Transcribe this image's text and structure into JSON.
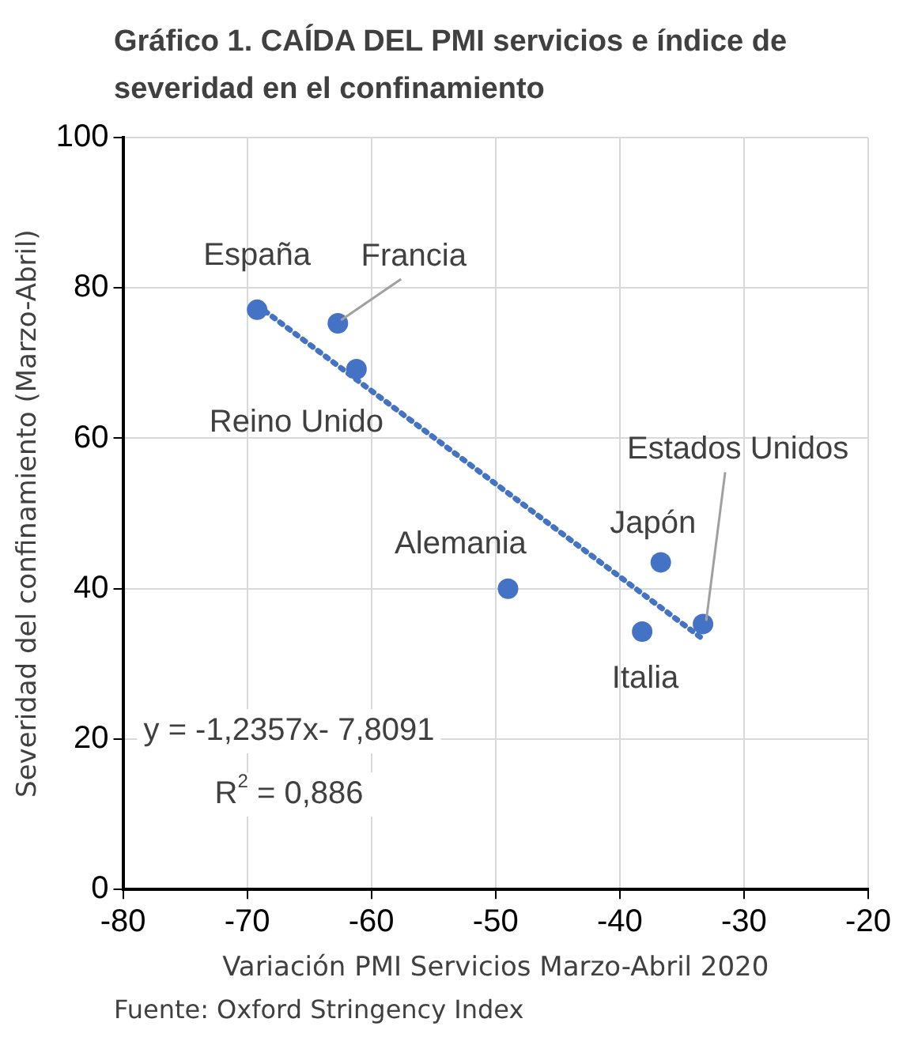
{
  "chart_data": {
    "type": "scatter",
    "title": "Gráfico 1. CAÍDA DEL PMI servicios e índice de severidad en el confinamiento",
    "xlabel": "Variación PMI Servicios Marzo-Abril 2020",
    "ylabel": "Severidad del confinamiento (Marzo-Abril)",
    "xlim": [
      -80,
      -20
    ],
    "xticks": [
      -80,
      -70,
      -60,
      -50,
      -40,
      -30,
      -20
    ],
    "ylim": [
      0,
      100
    ],
    "yticks": [
      0,
      20,
      40,
      60,
      80,
      100
    ],
    "grid": true,
    "series": [
      {
        "type": "scatter",
        "color": "#4472c4",
        "marker": "circle",
        "x": [
          -69.2,
          -62.7,
          -61.2,
          -49.0,
          -36.7,
          -38.2,
          -33.3
        ],
        "values": [
          77.1,
          75.3,
          69.2,
          40.0,
          43.5,
          34.3,
          35.3
        ]
      },
      {
        "type": "line",
        "color": "#4472c4",
        "marker": "none",
        "line_style": "dotted",
        "x": [
          -69.2,
          -33.3
        ],
        "values": [
          77.7,
          33.3
        ]
      }
    ],
    "annotations": [
      {
        "text": "España",
        "x": -69.2,
        "y": 77.1
      },
      {
        "text": "Francia",
        "x": -62.7,
        "y": 75.3
      },
      {
        "text": "Reino Unido",
        "x": -61.2,
        "y": 69.2
      },
      {
        "text": "Alemania",
        "x": -49.0,
        "y": 40.0
      },
      {
        "text": "Japón",
        "x": -36.7,
        "y": 43.5
      },
      {
        "text": "Italia",
        "x": -38.2,
        "y": 34.3
      },
      {
        "text": "Estados Unidos",
        "x": -33.3,
        "y": 35.3
      },
      "y = -1,2357x- 7,8091",
      "R$^{2}$ = 0,886",
      "Fuente: Oxford Stringency Index"
    ]
  }
}
